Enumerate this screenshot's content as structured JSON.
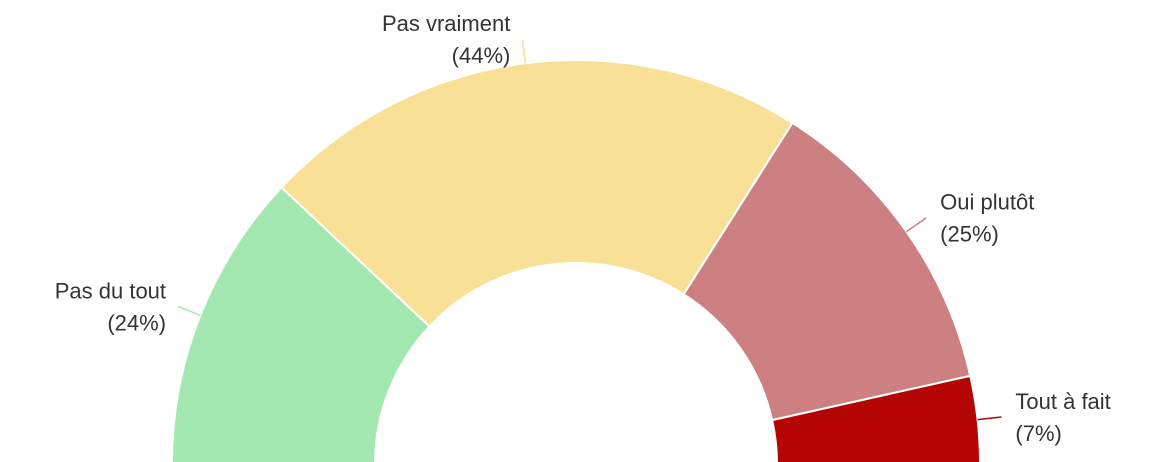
{
  "chart_data": {
    "type": "pie",
    "categories": [
      "Pas du tout",
      "Pas vraiment",
      "Oui plutôt",
      "Tout à fait"
    ],
    "values": [
      24,
      44,
      25,
      7
    ],
    "value_labels": [
      "(24%)",
      "(44%)",
      "(25%)",
      "(7%)"
    ],
    "colors": [
      "#a2e8b0",
      "#f8e196",
      "#cd8081",
      "#b50404"
    ]
  }
}
